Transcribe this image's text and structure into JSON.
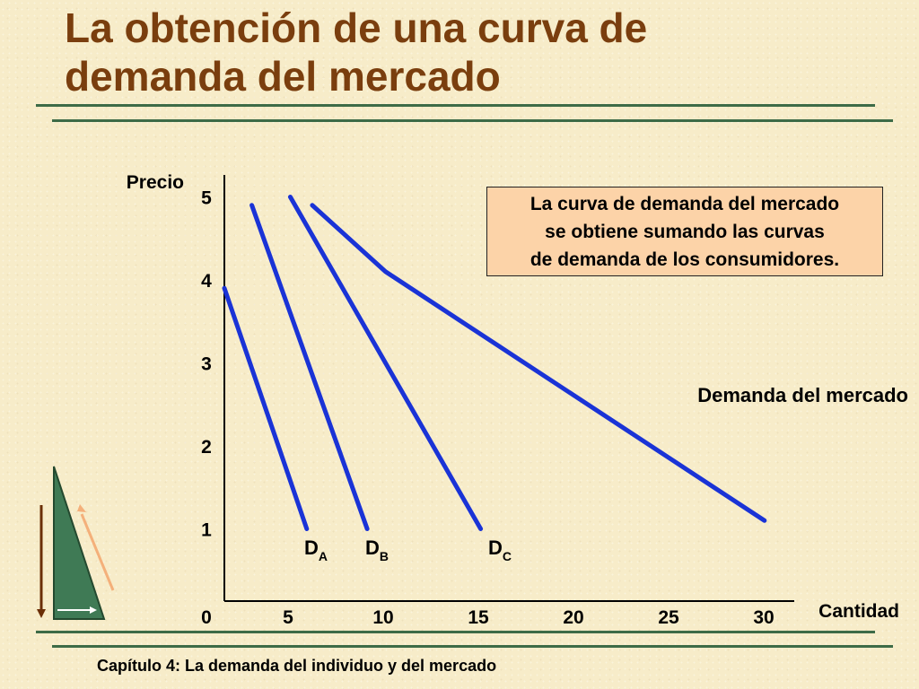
{
  "slide": {
    "title_line1": "La obtención de una curva de",
    "title_line2": "demanda del mercado",
    "footer": "Capítulo 4: La demanda del individuo y del mercado",
    "note": "La curva de demanda del mercado\nse obtiene sumando las curvas\nde demanda de los consumidores."
  },
  "colors": {
    "title": "#7a3e0e",
    "rule": "#3d6b47",
    "curve": "#1a33d6",
    "note_bg": "#fcd3a8",
    "background": "#f7ecc9"
  },
  "chart_data": {
    "type": "line",
    "xlabel": "Cantidad",
    "ylabel": "Precio",
    "xlim": [
      0,
      30
    ],
    "ylim": [
      0,
      5
    ],
    "x_ticks": [
      "0",
      "5",
      "10",
      "15",
      "20",
      "25",
      "30"
    ],
    "y_ticks": [
      "1",
      "2",
      "3",
      "4",
      "5"
    ],
    "grid": false,
    "series": [
      {
        "name": "D",
        "sub": "A",
        "points": [
          [
            0,
            3.9
          ],
          [
            4.5,
            1
          ]
        ]
      },
      {
        "name": "D",
        "sub": "B",
        "points": [
          [
            1.5,
            4.9
          ],
          [
            7.8,
            1
          ]
        ]
      },
      {
        "name": "D",
        "sub": "C",
        "points": [
          [
            3.6,
            5
          ],
          [
            14,
            1
          ]
        ]
      },
      {
        "name": "Demanda del mercado",
        "points": [
          [
            4.8,
            4.9
          ],
          [
            8.8,
            4.1
          ],
          [
            29.5,
            1.1
          ]
        ]
      }
    ]
  }
}
